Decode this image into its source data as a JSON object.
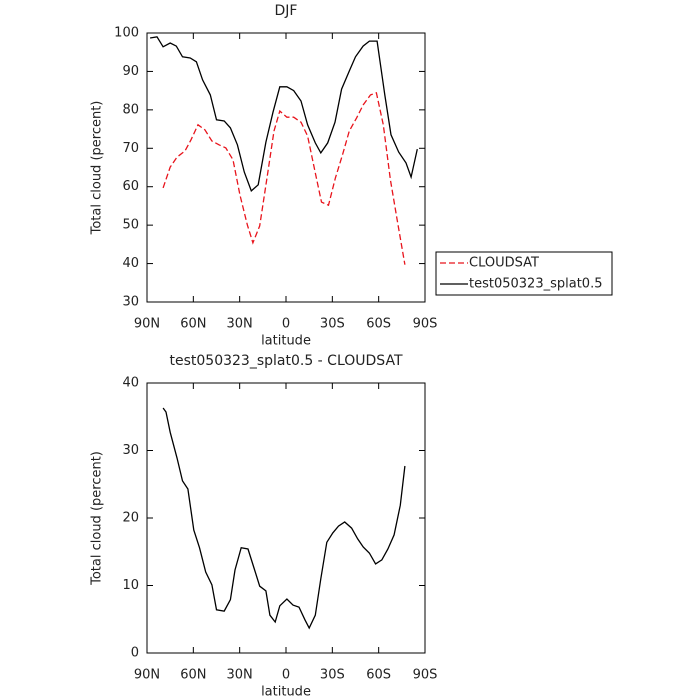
{
  "chart_data": [
    {
      "type": "line",
      "title": "DJF",
      "xlabel": "latitude",
      "ylabel": "Total cloud (percent)",
      "xlim": [
        90,
        -90
      ],
      "ylim": [
        30,
        100
      ],
      "xticks": [
        {
          "value": 90,
          "label": "90N"
        },
        {
          "value": 60,
          "label": "60N"
        },
        {
          "value": 30,
          "label": "30N"
        },
        0,
        {
          "value": -30,
          "label": "30S"
        },
        {
          "value": -60,
          "label": "60S"
        },
        {
          "value": -90,
          "label": "90S"
        }
      ],
      "yticks": [
        30,
        40,
        50,
        60,
        70,
        80,
        90,
        100
      ],
      "legend": "right",
      "series": [
        {
          "name": "CLOUDSAT",
          "color": "#e8141c",
          "linestyle": "dashed",
          "x": [
            79.6,
            75,
            70.6,
            65.4,
            61.5,
            57,
            52.5,
            48,
            43.4,
            39,
            34.3,
            29.8,
            25,
            21.4,
            17,
            12.3,
            7.8,
            4,
            -0.6,
            -5,
            -9.7,
            -14,
            -19,
            -23,
            -27.5,
            -32,
            -36.6,
            -41,
            -45.7,
            -50,
            -54.7,
            -58.5,
            -63,
            -67.6,
            -72,
            -77
          ],
          "values": [
            59.7,
            65.1,
            67.7,
            69.3,
            72.2,
            76.1,
            74.8,
            71.9,
            70.9,
            70.1,
            67,
            57.8,
            50,
            45.4,
            49.8,
            62.3,
            74.5,
            79.7,
            78.1,
            78.1,
            76.8,
            73.2,
            63.6,
            56,
            55.2,
            62.3,
            68.3,
            74.5,
            77.9,
            81.3,
            83.9,
            84.4,
            76.1,
            61.8,
            51.3,
            39.7
          ]
        },
        {
          "name": "test050323_splat0.5",
          "color": "#000000",
          "linestyle": "solid",
          "x": [
            88,
            83.5,
            79.6,
            75,
            71,
            67,
            62,
            58,
            54,
            49,
            45,
            40,
            36,
            31.5,
            27,
            22.5,
            18,
            13,
            8.4,
            4,
            -0.6,
            -5,
            -9.7,
            -14,
            -19,
            -22.5,
            -27,
            -31.7,
            -36,
            -41,
            -45,
            -49.9,
            -54,
            -59,
            -64,
            -68,
            -73,
            -77.7,
            -81,
            -85
          ],
          "values": [
            98.7,
            99,
            96.4,
            97.4,
            96.6,
            93.8,
            93.5,
            92.5,
            87.8,
            83.9,
            77.4,
            77.1,
            75.3,
            70.9,
            63.8,
            58.9,
            60.5,
            71.6,
            79.4,
            86,
            86,
            85,
            82.3,
            76.1,
            71.4,
            68.8,
            71.4,
            76.8,
            85.4,
            90.1,
            93.8,
            96.6,
            97.9,
            97.9,
            83.9,
            73.5,
            69,
            66.2,
            62.5,
            69.8
          ]
        }
      ]
    },
    {
      "type": "line",
      "title": "test050323_splat0.5 - CLOUDSAT",
      "xlabel": "latitude",
      "ylabel": "Total cloud (percent)",
      "xlim": [
        90,
        -90
      ],
      "ylim": [
        0,
        40
      ],
      "xticks": [
        {
          "value": 90,
          "label": "90N"
        },
        {
          "value": 60,
          "label": "60N"
        },
        {
          "value": 30,
          "label": "30N"
        },
        0,
        {
          "value": -30,
          "label": "30S"
        },
        {
          "value": -60,
          "label": "60S"
        },
        {
          "value": -90,
          "label": "90S"
        }
      ],
      "yticks": [
        0,
        10,
        20,
        30,
        40
      ],
      "series": [
        {
          "color": "#000000",
          "linestyle": "solid",
          "x": [
            79.6,
            77.7,
            75,
            70.6,
            67,
            63.5,
            59.7,
            56,
            52,
            48,
            45,
            40,
            36,
            33,
            29,
            24.6,
            20.7,
            17,
            13,
            10.4,
            7,
            4,
            -0.6,
            -4.5,
            -8.4,
            -12.3,
            -15,
            -19,
            -22.5,
            -26.4,
            -30.3,
            -34,
            -38,
            -42.5,
            -46.4,
            -50,
            -54,
            -58,
            -62,
            -66,
            -70,
            -74,
            -77
          ],
          "values": [
            36.3,
            35.7,
            32.7,
            28.9,
            25.5,
            24.3,
            18.2,
            15.6,
            12,
            10.1,
            6.4,
            6.2,
            7.9,
            12.3,
            15.6,
            15.4,
            12.6,
            9.9,
            9.2,
            5.6,
            4.6,
            7,
            8,
            7.1,
            6.8,
            4.9,
            3.7,
            5.6,
            11,
            16.4,
            17.8,
            18.8,
            19.4,
            18.5,
            16.9,
            15.7,
            14.8,
            13.2,
            13.8,
            15.4,
            17.5,
            21.9,
            27.7
          ]
        }
      ]
    }
  ]
}
